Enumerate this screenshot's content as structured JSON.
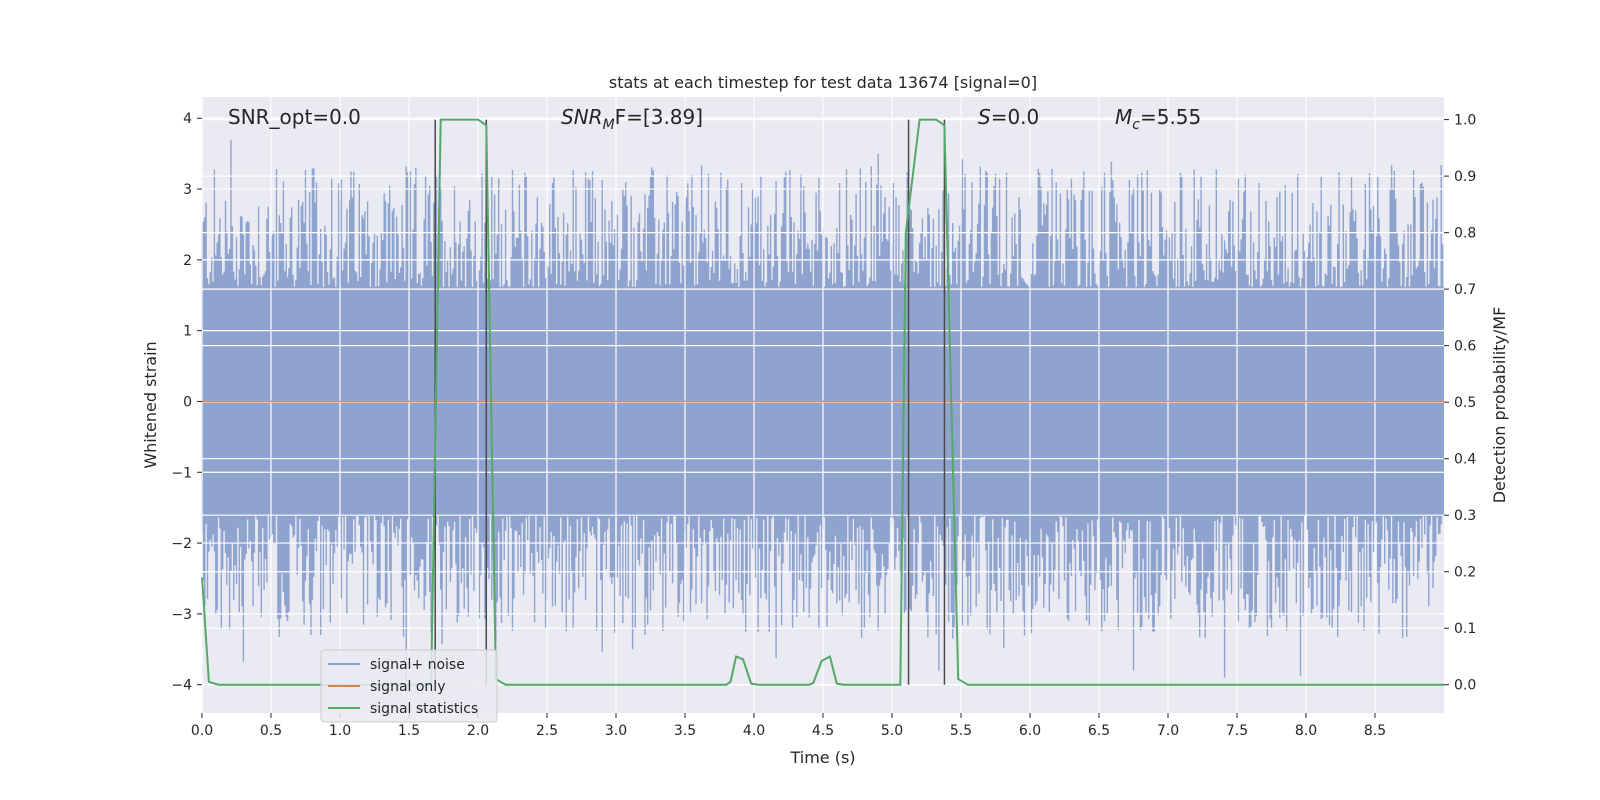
{
  "chart_data": {
    "type": "line",
    "title": "stats at each timestep for test data 13674 [signal=0]",
    "xlabel": "Time (s)",
    "ylabel": "Whitened strain",
    "y2label": "Detection probability/MF",
    "xlim": [
      0,
      9.0
    ],
    "ylim": [
      -4.4,
      4.3
    ],
    "y2lim": [
      -0.05,
      1.04
    ],
    "xticks": [
      0.0,
      0.5,
      1.0,
      1.5,
      2.0,
      2.5,
      3.0,
      3.5,
      4.0,
      4.5,
      5.0,
      5.5,
      6.0,
      6.5,
      7.0,
      7.5,
      8.0,
      8.5
    ],
    "xtick_labels": [
      "0.0",
      "0.5",
      "1.0",
      "1.5",
      "2.0",
      "2.5",
      "3.0",
      "3.5",
      "4.0",
      "4.5",
      "5.0",
      "5.5",
      "6.0",
      "6.5",
      "7.0",
      "7.5",
      "8.0",
      "8.5"
    ],
    "yticks": [
      -4,
      -3,
      -2,
      -1,
      0,
      1,
      2,
      3,
      4
    ],
    "ytick_labels": [
      "−4",
      "−3",
      "−2",
      "−1",
      "0",
      "1",
      "2",
      "3",
      "4"
    ],
    "y2ticks": [
      0.0,
      0.1,
      0.2,
      0.3,
      0.4,
      0.5,
      0.6,
      0.7,
      0.8,
      0.9,
      1.0
    ],
    "y2tick_labels": [
      "0.0",
      "0.1",
      "0.2",
      "0.3",
      "0.4",
      "0.5",
      "0.6",
      "0.7",
      "0.8",
      "0.9",
      "1.0"
    ],
    "grid": true,
    "legend_position": "lower-left",
    "annotations": {
      "snr_opt": "SNR_opt=0.0",
      "snr_mf_main": "SNR",
      "snr_mf_sub": "M",
      "snr_mf_rest": "F=[3.89]",
      "s_main": "S",
      "s_rest": "=0.0",
      "mc_main": "M",
      "mc_sub": "c",
      "mc_rest": "=5.55"
    },
    "vertical_lines_x": [
      1.69,
      2.06,
      5.12,
      5.38
    ],
    "series": [
      {
        "name": "signal+ noise",
        "color": "#8fa3cf",
        "style": "dense noise, mostly within ±1.6, peaks near ±3.9"
      },
      {
        "name": "signal only",
        "color": "#dd8452",
        "style": "flat at 0"
      },
      {
        "name": "signal statistics",
        "color": "#55a868",
        "points": [
          [
            0.0,
            0.19
          ],
          [
            0.05,
            0.005
          ],
          [
            0.12,
            0.0
          ],
          [
            1.66,
            0.0
          ],
          [
            1.73,
            1.0
          ],
          [
            2.0,
            1.0
          ],
          [
            2.06,
            0.99
          ],
          [
            2.13,
            0.01
          ],
          [
            2.2,
            0.0
          ],
          [
            3.8,
            0.0
          ],
          [
            3.83,
            0.005
          ],
          [
            3.87,
            0.05
          ],
          [
            3.92,
            0.045
          ],
          [
            3.98,
            0.002
          ],
          [
            4.03,
            0.0
          ],
          [
            4.4,
            0.0
          ],
          [
            4.43,
            0.003
          ],
          [
            4.49,
            0.042
          ],
          [
            4.55,
            0.05
          ],
          [
            4.6,
            0.002
          ],
          [
            4.65,
            0.0
          ],
          [
            5.06,
            0.0
          ],
          [
            5.1,
            0.8
          ],
          [
            5.2,
            1.0
          ],
          [
            5.32,
            1.0
          ],
          [
            5.38,
            0.99
          ],
          [
            5.48,
            0.01
          ],
          [
            5.55,
            0.0
          ],
          [
            9.0,
            0.0
          ]
        ]
      }
    ]
  }
}
